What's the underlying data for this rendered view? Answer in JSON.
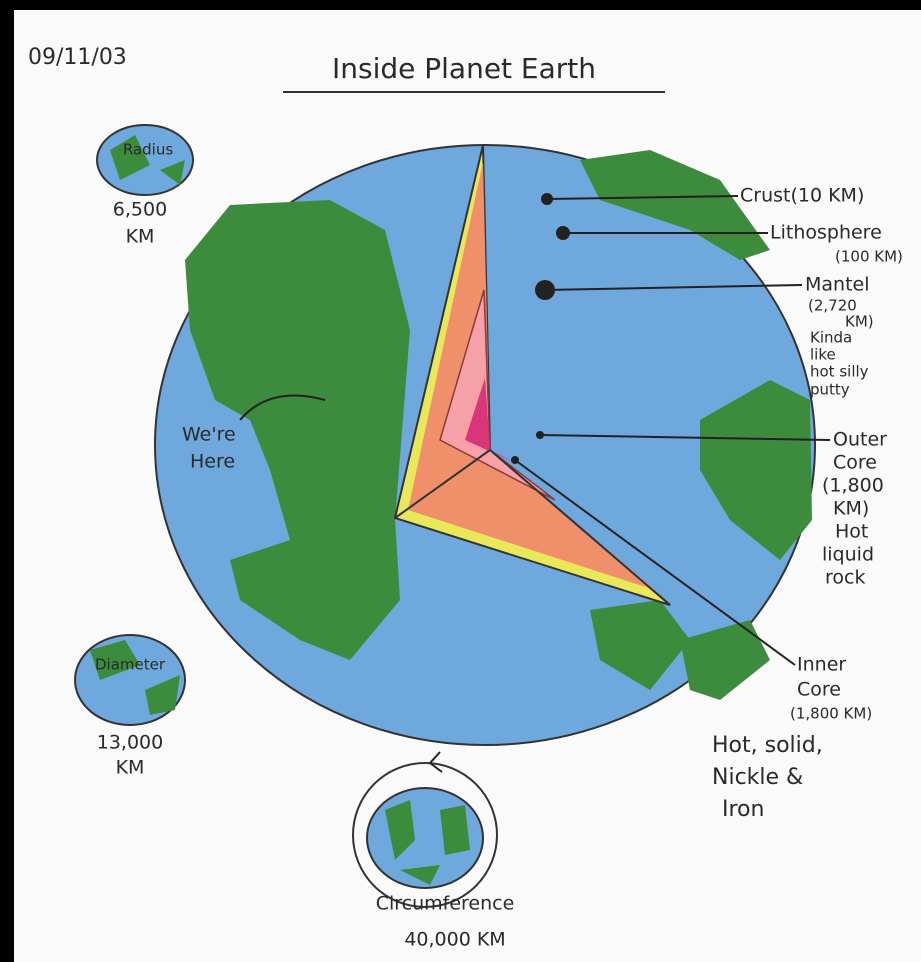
{
  "date": "09/11/03",
  "title": "Inside Planet Earth",
  "globes": [
    {
      "label": "Radius",
      "lines": [
        "6,500",
        "KM"
      ]
    },
    {
      "label": "Diameter",
      "lines": [
        "13,000",
        "KM"
      ]
    },
    {
      "label": null,
      "lines": [
        "Circumference",
        "40,000 KM"
      ]
    }
  ],
  "here": [
    "We're",
    "Here"
  ],
  "layers": [
    {
      "lines": [
        "Crust(10 KM)"
      ]
    },
    {
      "lines": [
        "Lithosphere",
        "(100 KM)"
      ]
    },
    {
      "lines": [
        "Mantel",
        "(2,720",
        "KM)",
        "Kinda",
        "like",
        "hot silly",
        "putty"
      ]
    },
    {
      "lines": [
        "Outer",
        "Core",
        "(1,800",
        "KM)",
        "Hot",
        "liquid",
        "rock"
      ]
    },
    {
      "lines": [
        "Inner",
        "Core",
        "(1,800 KM)"
      ]
    }
  ],
  "note": [
    "Hot, solid,",
    "Nickle &",
    "Iron"
  ]
}
